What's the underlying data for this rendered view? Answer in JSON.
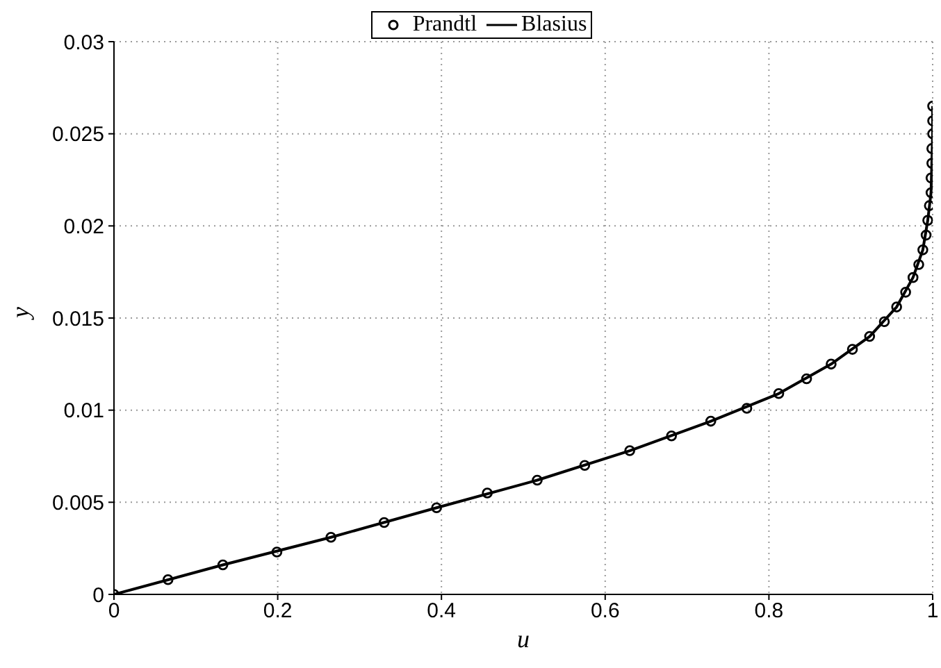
{
  "chart_data": {
    "type": "line",
    "xlabel": "u",
    "ylabel": "y",
    "xlim": [
      0,
      1
    ],
    "xticks": [
      0,
      0.2,
      0.4,
      0.6,
      0.8,
      1
    ],
    "ylim": [
      0,
      0.03
    ],
    "yticks": [
      0,
      0.005,
      0.01,
      0.015,
      0.02,
      0.025,
      0.03
    ],
    "grid": true,
    "legend": "top",
    "series": [
      {
        "name": "Prandtl",
        "type": "scatter",
        "marker": "circle",
        "color": "#000000",
        "x": [
          0,
          0.066,
          0.133,
          0.199,
          0.265,
          0.33,
          0.394,
          0.456,
          0.517,
          0.575,
          0.63,
          0.681,
          0.729,
          0.773,
          0.812,
          0.846,
          0.876,
          0.902,
          0.923,
          0.941,
          0.956,
          0.967,
          0.976,
          0.983,
          0.988,
          0.992,
          0.994,
          0.996,
          0.998,
          0.998,
          0.999,
          0.999,
          1.0,
          1.0,
          1.0
        ],
        "values": [
          0,
          0.0008,
          0.0016,
          0.0023,
          0.0031,
          0.0039,
          0.0047,
          0.0055,
          0.0062,
          0.007,
          0.0078,
          0.0086,
          0.0094,
          0.0101,
          0.0109,
          0.0117,
          0.0125,
          0.0133,
          0.014,
          0.0148,
          0.0156,
          0.0164,
          0.0172,
          0.0179,
          0.0187,
          0.0195,
          0.0203,
          0.0211,
          0.0218,
          0.0226,
          0.0234,
          0.0242,
          0.025,
          0.0257,
          0.0265
        ]
      },
      {
        "name": "Blasius",
        "type": "line",
        "marker": "none",
        "line_style": "solid",
        "color": "#000000",
        "x": [
          0,
          0.133,
          0.265,
          0.394,
          0.517,
          0.63,
          0.729,
          0.812,
          0.876,
          0.923,
          0.956,
          0.976,
          0.988,
          0.994,
          0.998,
          0.999,
          1.0,
          1.0
        ],
        "values": [
          0,
          0.0016,
          0.0031,
          0.0047,
          0.0062,
          0.0078,
          0.0094,
          0.0109,
          0.0125,
          0.014,
          0.0156,
          0.0172,
          0.0187,
          0.0203,
          0.0218,
          0.0234,
          0.025,
          0.0265
        ]
      }
    ]
  }
}
